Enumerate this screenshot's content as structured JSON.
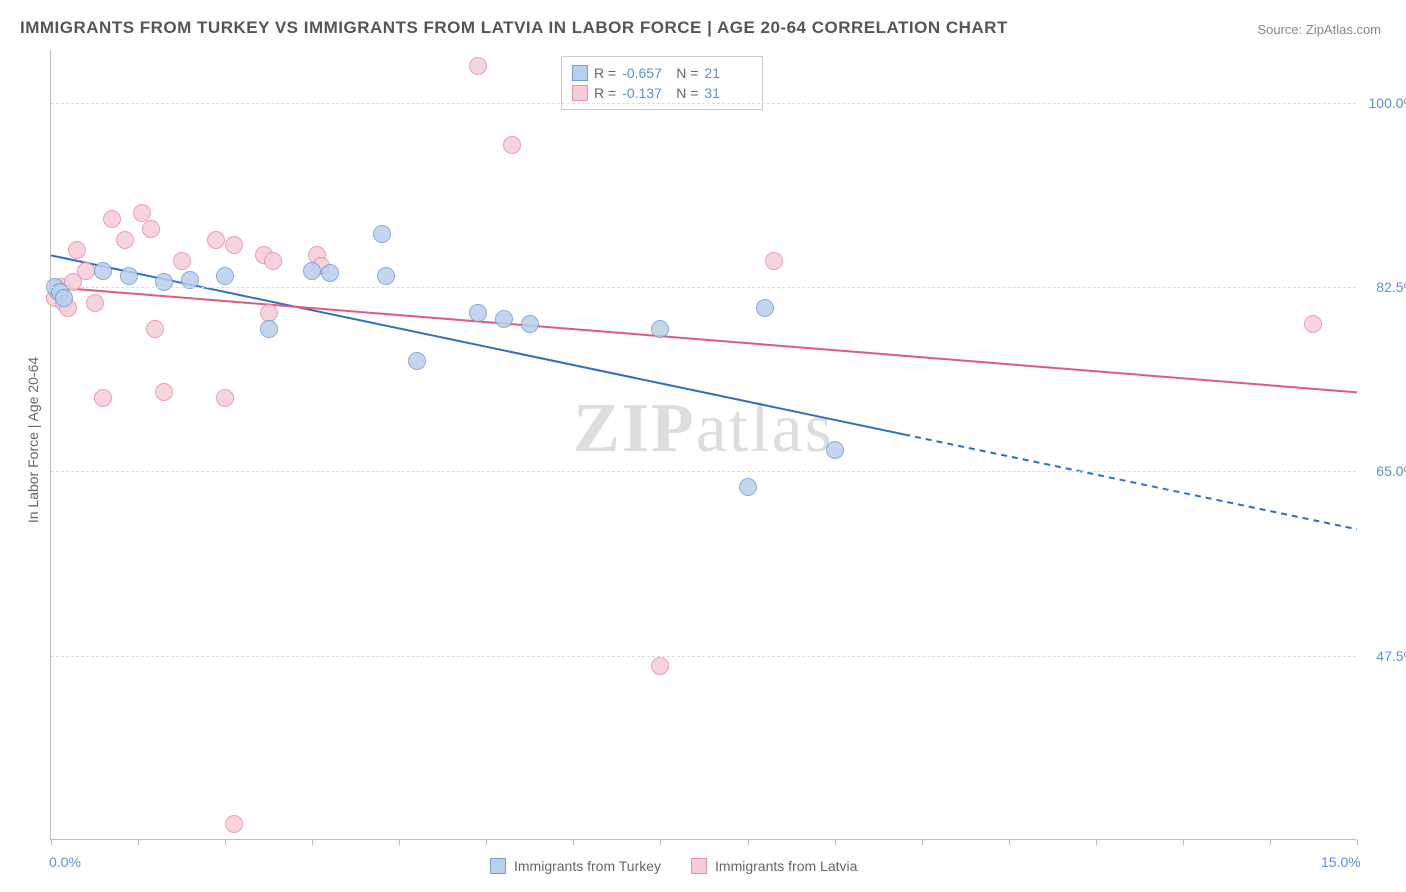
{
  "title": "IMMIGRANTS FROM TURKEY VS IMMIGRANTS FROM LATVIA IN LABOR FORCE | AGE 20-64 CORRELATION CHART",
  "source": "Source: ZipAtlas.com",
  "watermark_a": "ZIP",
  "watermark_b": "atlas",
  "y_axis_label": "In Labor Force | Age 20-64",
  "chart": {
    "type": "scatter",
    "background_color": "#ffffff",
    "grid_color": "#dddddd",
    "axis_color": "#bbbbbb",
    "tick_label_color": "#5b8fd6",
    "text_color": "#666666",
    "title_color": "#555555",
    "title_fontsize": 17,
    "label_fontsize": 14,
    "xlim": [
      0,
      15
    ],
    "ylim": [
      30,
      105
    ],
    "x_ticks": [
      0,
      1,
      2,
      3,
      4,
      5,
      6,
      7,
      8,
      9,
      10,
      11,
      12,
      13,
      14,
      15
    ],
    "x_tick_labels": {
      "0": "0.0%",
      "15": "15.0%"
    },
    "y_grid": [
      47.5,
      65.0,
      82.5,
      100.0
    ],
    "y_tick_labels": [
      "47.5%",
      "65.0%",
      "82.5%",
      "100.0%"
    ],
    "marker_radius": 9,
    "marker_stroke_width": 1,
    "line_width": 2,
    "series": [
      {
        "name": "Immigrants from Turkey",
        "color_fill": "#b9d0ec",
        "color_stroke": "#6f9fd8",
        "line_color": "#2f6fc2",
        "R": "-0.657",
        "N": "21",
        "trend": {
          "x1": 0,
          "y1": 85.5,
          "x2": 9.8,
          "y2": 68.5,
          "x2_ext": 15,
          "y2_ext": 59.5
        },
        "points": [
          {
            "x": 0.05,
            "y": 82.5
          },
          {
            "x": 0.1,
            "y": 82.0
          },
          {
            "x": 0.15,
            "y": 81.5
          },
          {
            "x": 0.6,
            "y": 84.0
          },
          {
            "x": 0.9,
            "y": 83.5
          },
          {
            "x": 1.3,
            "y": 83.0
          },
          {
            "x": 1.6,
            "y": 83.2
          },
          {
            "x": 2.0,
            "y": 83.5
          },
          {
            "x": 2.5,
            "y": 78.5
          },
          {
            "x": 3.0,
            "y": 84.0
          },
          {
            "x": 3.2,
            "y": 83.8
          },
          {
            "x": 3.8,
            "y": 87.5
          },
          {
            "x": 3.85,
            "y": 83.5
          },
          {
            "x": 4.2,
            "y": 75.5
          },
          {
            "x": 4.9,
            "y": 80.0
          },
          {
            "x": 5.2,
            "y": 79.5
          },
          {
            "x": 5.5,
            "y": 79.0
          },
          {
            "x": 7.0,
            "y": 78.5
          },
          {
            "x": 8.0,
            "y": 63.5
          },
          {
            "x": 8.2,
            "y": 80.5
          },
          {
            "x": 9.0,
            "y": 67.0
          }
        ]
      },
      {
        "name": "Immigrants from Latvia",
        "color_fill": "#f6cdd6",
        "color_stroke": "#e890a4",
        "line_color": "#e05a7e",
        "R": "-0.137",
        "N": "31",
        "trend": {
          "x1": 0,
          "y1": 82.5,
          "x2": 15,
          "y2": 72.5
        },
        "points": [
          {
            "x": 0.05,
            "y": 81.5
          },
          {
            "x": 0.08,
            "y": 82.0
          },
          {
            "x": 0.12,
            "y": 82.5
          },
          {
            "x": 0.15,
            "y": 81.0
          },
          {
            "x": 0.2,
            "y": 80.5
          },
          {
            "x": 0.25,
            "y": 83.0
          },
          {
            "x": 0.3,
            "y": 86.0
          },
          {
            "x": 0.4,
            "y": 84.0
          },
          {
            "x": 0.5,
            "y": 81.0
          },
          {
            "x": 0.6,
            "y": 72.0
          },
          {
            "x": 0.7,
            "y": 89.0
          },
          {
            "x": 0.85,
            "y": 87.0
          },
          {
            "x": 1.05,
            "y": 89.5
          },
          {
            "x": 1.15,
            "y": 88.0
          },
          {
            "x": 1.2,
            "y": 78.5
          },
          {
            "x": 1.3,
            "y": 72.5
          },
          {
            "x": 1.5,
            "y": 85.0
          },
          {
            "x": 1.9,
            "y": 87.0
          },
          {
            "x": 2.0,
            "y": 72.0
          },
          {
            "x": 2.1,
            "y": 86.5
          },
          {
            "x": 2.1,
            "y": 31.5
          },
          {
            "x": 2.45,
            "y": 85.5
          },
          {
            "x": 2.55,
            "y": 85.0
          },
          {
            "x": 2.5,
            "y": 80.0
          },
          {
            "x": 3.05,
            "y": 85.5
          },
          {
            "x": 3.1,
            "y": 84.5
          },
          {
            "x": 4.9,
            "y": 103.5
          },
          {
            "x": 5.3,
            "y": 96.0
          },
          {
            "x": 7.0,
            "y": 46.5
          },
          {
            "x": 8.3,
            "y": 85.0
          },
          {
            "x": 14.5,
            "y": 79.0
          }
        ]
      }
    ]
  },
  "legend_top": {
    "R_label": "R =",
    "N_label": "N ="
  },
  "legend_bottom_items": [
    "Immigrants from Turkey",
    "Immigrants from Latvia"
  ]
}
